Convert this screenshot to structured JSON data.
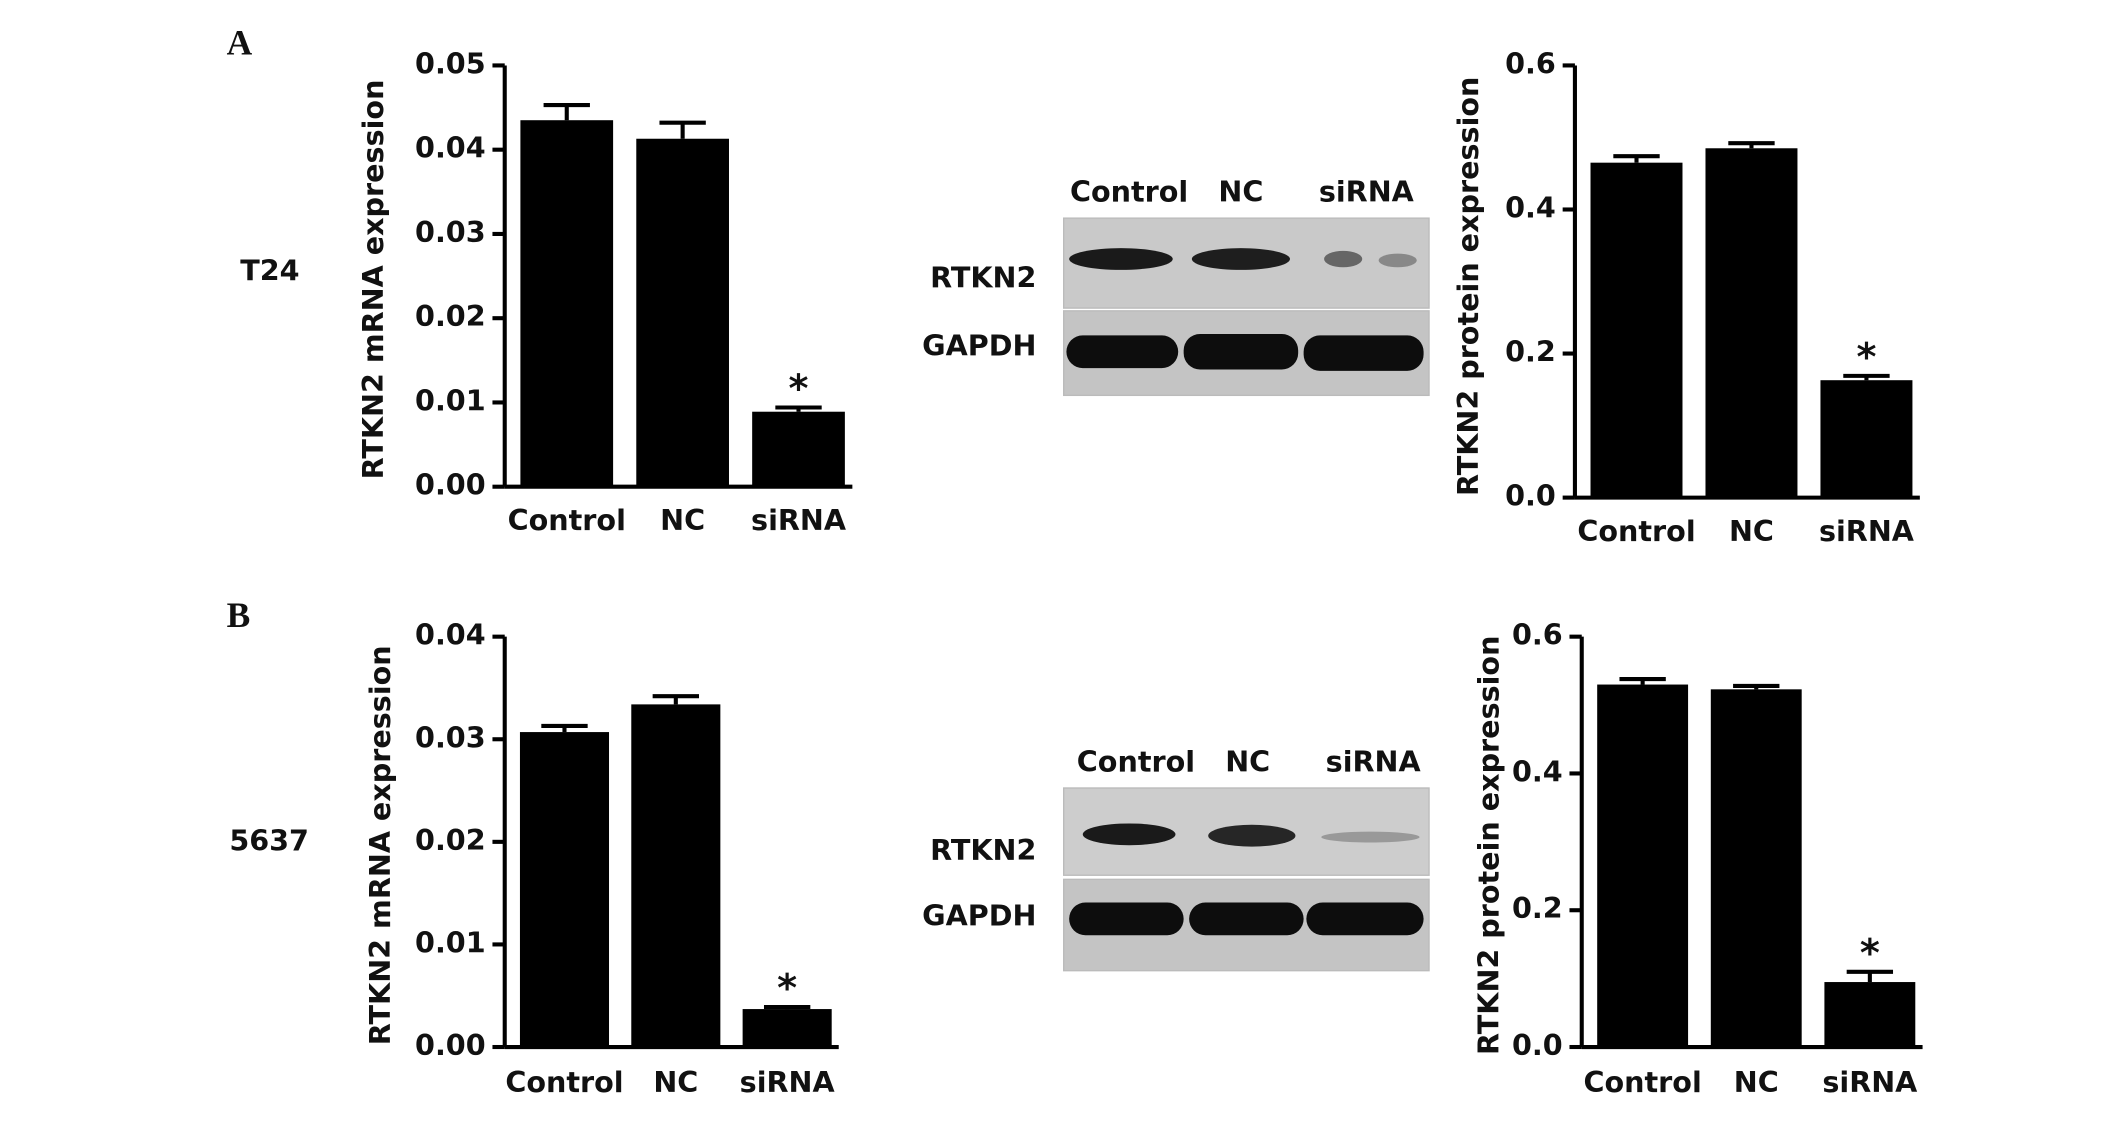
{
  "panels": [
    {
      "label": "A",
      "cell_line": "T24"
    },
    {
      "label": "B",
      "cell_line": "5637"
    }
  ],
  "blots": [
    {
      "lanes": [
        "Control",
        "NC",
        "siRNA"
      ],
      "rows": [
        "RTKN2",
        "GAPDH"
      ]
    },
    {
      "lanes": [
        "Control",
        "NC",
        "siRNA"
      ],
      "rows": [
        "RTKN2",
        "GAPDH"
      ]
    }
  ],
  "chart_data": [
    {
      "type": "bar",
      "y_label": "RTKN2 mRNA expression",
      "categories": [
        "Control",
        "NC",
        "siRNA"
      ],
      "values": [
        0.0435,
        0.0413,
        0.0089
      ],
      "errors": [
        0.0018,
        0.0019,
        0.0005
      ],
      "annotation": "*",
      "color": "#000000",
      "ylim": [
        0,
        0.05
      ],
      "yticks": [
        {
          "value": 0,
          "label": "0.00"
        },
        0.01,
        0.02,
        0.03,
        0.04,
        0.05
      ]
    },
    {
      "type": "bar",
      "y_label": "RTKN2 protein expression",
      "categories": [
        "Control",
        "NC",
        "siRNA"
      ],
      "values": [
        0.465,
        0.485,
        0.163
      ],
      "errors": [
        0.009,
        0.007,
        0.006
      ],
      "annotation": "*",
      "color": "#000000",
      "ylim": [
        0,
        0.6
      ],
      "yticks": [
        {
          "value": 0,
          "label": "0.0"
        },
        0.2,
        0.4,
        0.6
      ]
    },
    {
      "type": "bar",
      "y_label": "RTKN2 mRNA expression",
      "categories": [
        "Control",
        "NC",
        "siRNA"
      ],
      "values": [
        0.0307,
        0.0334,
        0.0037
      ],
      "errors": [
        0.0006,
        0.0008,
        0.0002
      ],
      "annotation": "*",
      "color": "#000000",
      "ylim": [
        0,
        0.04
      ],
      "yticks": [
        {
          "value": 0,
          "label": "0.00"
        },
        0.01,
        0.02,
        0.03,
        0.04
      ]
    },
    {
      "type": "bar",
      "y_label": "RTKN2 protein expression",
      "categories": [
        "Control",
        "NC",
        "siRNA"
      ],
      "values": [
        0.53,
        0.523,
        0.095
      ],
      "errors": [
        0.008,
        0.005,
        0.015
      ],
      "annotation": "*",
      "color": "#000000",
      "ylim": [
        0,
        0.6
      ],
      "yticks": [
        {
          "value": 0,
          "label": "0.0"
        },
        0.2,
        0.4,
        0.6
      ]
    }
  ]
}
